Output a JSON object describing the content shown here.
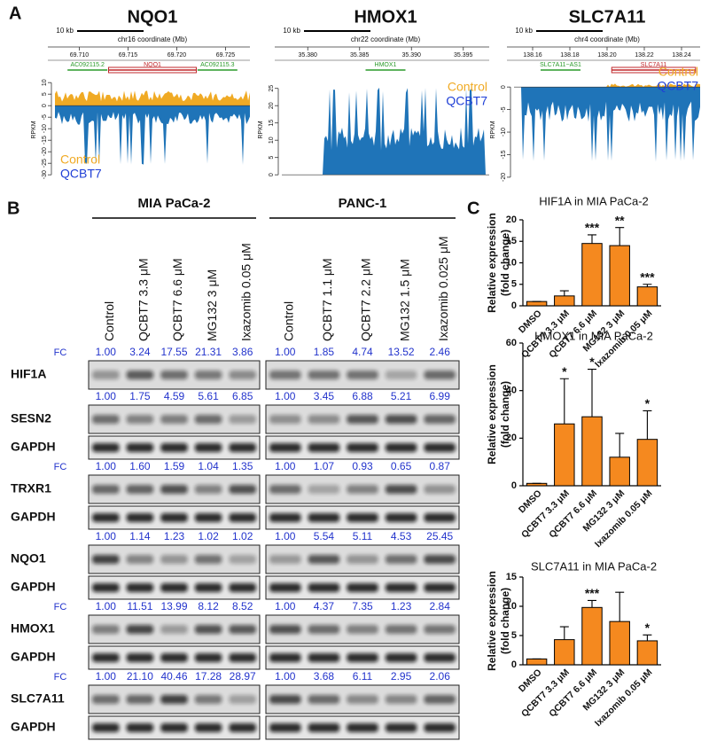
{
  "panel_labels": [
    "A",
    "B",
    "C"
  ],
  "panel_a": {
    "colors": {
      "control": "#f0aa24",
      "qcbt7": "#1f74b8"
    },
    "tracks": [
      {
        "title": "NQO1",
        "scale_bar": "10 kb",
        "coord_label": "chr16 coordinate (Mb)",
        "xticks": [
          "69.710",
          "69.715",
          "69.720",
          "69.725"
        ],
        "genes": [
          {
            "label": "AC092115.2",
            "color": "#2a9a2a"
          },
          {
            "label": "NQO1",
            "color": "#c0282c"
          },
          {
            "label": "AC092115.3",
            "color": "#2a9a2a"
          }
        ],
        "y_label": "RPKM",
        "ylim": [
          -33,
          12
        ],
        "yticks": [
          10,
          5,
          0,
          -5,
          -10,
          -15,
          -20,
          -25,
          -30
        ],
        "legend": [
          "Control",
          "QCBT7"
        ],
        "legend_corner": "bottom-left"
      },
      {
        "title": "HMOX1",
        "scale_bar": "10 kb",
        "coord_label": "chr22 coordinate (Mb)",
        "xticks": [
          "35.380",
          "35.385",
          "35.390",
          "35.395"
        ],
        "genes": [
          {
            "label": "HMOX1",
            "color": "#2a9a2a"
          }
        ],
        "y_label": "RPKM",
        "ylim": [
          -2,
          28
        ],
        "yticks": [
          0,
          5,
          10,
          15,
          20,
          25
        ],
        "legend": [
          "Control",
          "QCBT7"
        ],
        "legend_corner": "top-right"
      },
      {
        "title": "SLC7A11",
        "scale_bar": "10 kb",
        "coord_label": "chr4 coordinate (Mb)",
        "xticks": [
          "138.16",
          "138.18",
          "138.20",
          "138.22",
          "138.24"
        ],
        "genes": [
          {
            "label": "SLC7A11−AS1",
            "color": "#2a9a2a"
          },
          {
            "label": "SLC7A11",
            "color": "#c0282c"
          }
        ],
        "y_label": "RPKM",
        "ylim": [
          -21,
          2
        ],
        "yticks": [
          0,
          -5,
          -10,
          -15,
          -20
        ],
        "legend": [
          "Control",
          "QCBT7"
        ],
        "legend_corner": "top-right"
      }
    ]
  },
  "panel_b": {
    "groups": [
      {
        "name": "MIA PaCa-2",
        "lanes": [
          "Control",
          "QCBT7 3.3 μM",
          "QCBT7 6.6 μM",
          "MG132 3 μM",
          "Ixazomib 0.05 μM"
        ]
      },
      {
        "name": "PANC-1",
        "lanes": [
          "Control",
          "QCBT7 1.1 μM",
          "QCBT7 2.2 μM",
          "MG132 1.5 μM",
          "Ixazomib 0.025 μM"
        ]
      }
    ],
    "rows": [
      {
        "label": "HIF1A",
        "fc_label": "FC",
        "fc": [
          [
            "1.00",
            "3.24",
            "17.55",
            "21.31",
            "3.86"
          ],
          [
            "1.00",
            "1.85",
            "4.74",
            "13.52",
            "2.46"
          ]
        ]
      },
      {
        "label": "SESN2",
        "fc_label": null,
        "fc": [
          [
            "1.00",
            "1.75",
            "4.59",
            "5.61",
            "6.85"
          ],
          [
            "1.00",
            "3.45",
            "6.88",
            "5.21",
            "6.99"
          ]
        ]
      },
      {
        "label": "GAPDH"
      },
      {
        "label": "TRXR1",
        "fc_label": "FC",
        "fc": [
          [
            "1.00",
            "1.60",
            "1.59",
            "1.04",
            "1.35"
          ],
          [
            "1.00",
            "1.07",
            "0.93",
            "0.65",
            "0.87"
          ]
        ]
      },
      {
        "label": "GAPDH"
      },
      {
        "label": "NQO1",
        "fc_label": null,
        "fc": [
          [
            "1.00",
            "1.14",
            "1.23",
            "1.02",
            "1.02"
          ],
          [
            "1.00",
            "5.54",
            "5.11",
            "4.53",
            "25.45"
          ]
        ]
      },
      {
        "label": "GAPDH"
      },
      {
        "label": "HMOX1",
        "fc_label": "FC",
        "fc": [
          [
            "1.00",
            "11.51",
            "13.99",
            "8.12",
            "8.52"
          ],
          [
            "1.00",
            "4.37",
            "7.35",
            "1.23",
            "2.84"
          ]
        ]
      },
      {
        "label": "GAPDH"
      },
      {
        "label": "SLC7A11",
        "fc_label": "FC",
        "fc": [
          [
            "1.00",
            "21.10",
            "40.46",
            "17.28",
            "28.97"
          ],
          [
            "1.00",
            "3.68",
            "6.11",
            "2.95",
            "2.06"
          ]
        ]
      },
      {
        "label": "GAPDH"
      }
    ]
  },
  "chart_data": [
    {
      "type": "bar",
      "title": "HIF1A in MIA PaCa-2",
      "y_label": [
        "Relative expression",
        "(fold change)"
      ],
      "categories": [
        "DMSO",
        "QCBT7 3.3 μM",
        "QCBT7 6.6 μM",
        "MG132 3 μM",
        "Ixazomib 0.05 μM"
      ],
      "values": [
        1,
        2.3,
        14.5,
        14,
        4.4
      ],
      "errors": [
        0,
        1.2,
        2,
        4.2,
        0.6
      ],
      "annotations": [
        null,
        null,
        "***",
        "**",
        "***"
      ],
      "color": "#f5891f",
      "ylim": [
        0,
        20
      ],
      "yticks": [
        0,
        5,
        10,
        15,
        20
      ]
    },
    {
      "type": "bar",
      "title": "HMOX1 in MIA PaCa-2",
      "y_label": [
        "Relative expression",
        "(fold change)"
      ],
      "categories": [
        "DMSO",
        "QCBT7 3.3 μM",
        "QCBT7 6.6 μM",
        "MG132 3 μM",
        "Ixazomib 0.05 μM"
      ],
      "values": [
        1,
        26,
        29,
        12,
        19.5
      ],
      "errors": [
        0,
        19,
        20,
        10,
        12
      ],
      "annotations": [
        null,
        "*",
        "*",
        null,
        "*"
      ],
      "color": "#f5891f",
      "ylim": [
        0,
        60
      ],
      "yticks": [
        0,
        20,
        40,
        60
      ]
    },
    {
      "type": "bar",
      "title": "SLC7A11 in MIA PaCa-2",
      "y_label": [
        "Relative expression",
        "(fold change)"
      ],
      "categories": [
        "DMSO",
        "QCBT7 3.3 μM",
        "QCBT7 6.6 μM",
        "MG132 3 μM",
        "Ixazomib 0.05 μM"
      ],
      "values": [
        1,
        4.3,
        9.8,
        7.4,
        4.1
      ],
      "errors": [
        0,
        2.2,
        1.2,
        5,
        1
      ],
      "annotations": [
        null,
        null,
        "***",
        null,
        "*"
      ],
      "color": "#f5891f",
      "ylim": [
        0,
        15
      ],
      "yticks": [
        0,
        5,
        10,
        15
      ]
    }
  ]
}
